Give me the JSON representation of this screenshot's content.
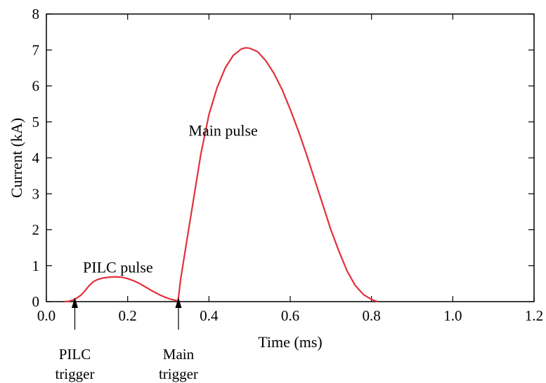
{
  "colors": {
    "curve": "#e2313d",
    "axis": "#000000",
    "background": "#ffffff"
  },
  "chart_data": {
    "type": "line",
    "title": "",
    "xlabel": "Time  (ms)",
    "ylabel": "Current (kA)",
    "xlim": [
      0.0,
      1.2
    ],
    "ylim": [
      0,
      8
    ],
    "grid": false,
    "legend": "none",
    "xticks": [
      0.0,
      0.2,
      0.4,
      0.6,
      0.8,
      1.0,
      1.2
    ],
    "xtick_labels": [
      "0.0",
      "0.2",
      "0.4",
      "0.6",
      "0.8",
      "1.0",
      "1.2"
    ],
    "yticks": [
      0,
      1,
      2,
      3,
      4,
      5,
      6,
      7,
      8
    ],
    "ytick_labels": [
      "0",
      "1",
      "2",
      "3",
      "4",
      "5",
      "6",
      "7",
      "8"
    ],
    "series": [
      {
        "x": [
          0.045,
          0.055,
          0.065,
          0.075,
          0.085,
          0.095,
          0.105,
          0.115,
          0.125,
          0.14,
          0.155,
          0.17,
          0.185,
          0.2,
          0.215,
          0.23,
          0.245,
          0.26,
          0.275,
          0.29,
          0.305,
          0.32,
          0.324,
          0.33,
          0.34,
          0.35,
          0.36,
          0.38,
          0.4,
          0.42,
          0.44,
          0.46,
          0.48,
          0.49,
          0.5,
          0.52,
          0.54,
          0.56,
          0.58,
          0.6,
          0.62,
          0.64,
          0.66,
          0.68,
          0.7,
          0.72,
          0.74,
          0.76,
          0.78,
          0.8,
          0.815
        ],
        "y": [
          0.0,
          0.01,
          0.04,
          0.1,
          0.18,
          0.3,
          0.44,
          0.55,
          0.61,
          0.66,
          0.68,
          0.69,
          0.68,
          0.64,
          0.58,
          0.5,
          0.4,
          0.3,
          0.21,
          0.13,
          0.07,
          0.03,
          0.02,
          0.6,
          1.3,
          2.0,
          2.7,
          4.1,
          5.2,
          5.95,
          6.5,
          6.85,
          7.03,
          7.06,
          7.05,
          6.95,
          6.7,
          6.35,
          5.9,
          5.35,
          4.75,
          4.1,
          3.4,
          2.7,
          2.0,
          1.4,
          0.85,
          0.45,
          0.2,
          0.06,
          0.0
        ]
      }
    ],
    "annotations": [
      {
        "text": "Main pulse",
        "x": 0.35,
        "y": 4.75
      },
      {
        "text": "PILC pulse",
        "x": 0.09,
        "y": 0.95
      }
    ],
    "markers": [
      {
        "x": 0.07,
        "line1": "PILC",
        "line2": "trigger"
      },
      {
        "x": 0.325,
        "line1": "Main",
        "line2": "trigger"
      }
    ]
  }
}
